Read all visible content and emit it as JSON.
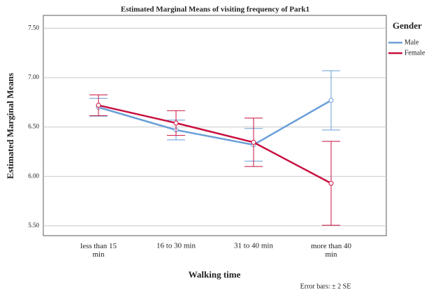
{
  "chart_data": {
    "type": "line",
    "title": "Estimated Marginal Means of visiting frequency of Park1",
    "x_label": "Walking time",
    "y_label": "Estimated Marginal Means",
    "legend_title": "Gender",
    "legend_position": "right",
    "footnote": "Error bars: ± 2 SE",
    "categories": [
      "less than 15 min",
      "16 to 30 min",
      "31 to 40 min",
      "more than 40 min"
    ],
    "series": [
      {
        "name": "Male",
        "color": "#6a9fd8",
        "values": [
          6.7,
          6.47,
          6.32,
          6.77
        ],
        "errors": [
          0.09,
          0.1,
          0.165,
          0.3
        ]
      },
      {
        "name": "Female",
        "color": "#c8103f",
        "values": [
          6.72,
          6.54,
          6.345,
          5.93
        ],
        "errors": [
          0.105,
          0.125,
          0.245,
          0.425
        ]
      }
    ],
    "ylim": [
      5.4,
      7.63
    ],
    "yticks": [
      {
        "value": 5.5,
        "label": "5.50"
      },
      {
        "value": 6.0,
        "label": "6.00"
      },
      {
        "value": 6.5,
        "label": "6.50"
      },
      {
        "value": 7.0,
        "label": "7.00"
      },
      {
        "value": 7.5,
        "label": "7.50"
      }
    ],
    "grid": true
  }
}
